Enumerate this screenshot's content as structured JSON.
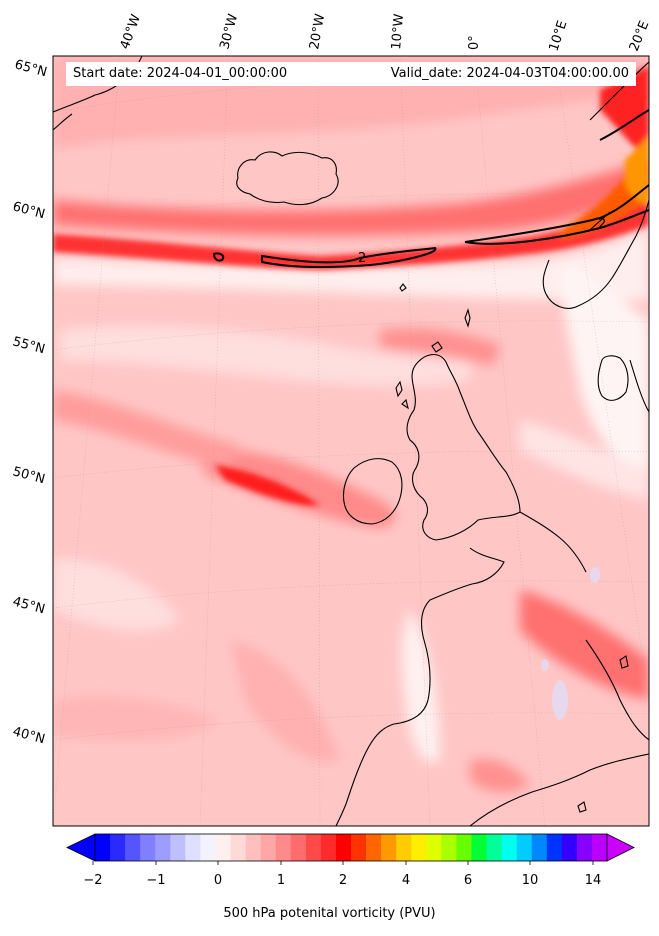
{
  "header": {
    "start_date": "Start date: 2024-04-01_00:00:00",
    "valid_date": "Valid_date: 2024-04-03T04:00:00.00"
  },
  "axes": {
    "lon_labels": [
      "40°W",
      "30°W",
      "20°W",
      "10°W",
      "0°",
      "10°E",
      "20°E"
    ],
    "lat_labels": [
      "65°N",
      "60°N",
      "55°N",
      "50°N",
      "45°N",
      "40°N"
    ]
  },
  "contour_label": "2",
  "colorbar": {
    "title": "500 hPa potenital vorticity (PVU)",
    "tick_labels": [
      "−2",
      "−1",
      "0",
      "1",
      "2",
      "4",
      "6",
      "10",
      "14"
    ],
    "colors": [
      "#0000ff",
      "#2a2aff",
      "#5555ff",
      "#7f7fff",
      "#9d9dff",
      "#bfbfff",
      "#dfdfff",
      "#f3f3ff",
      "#fff0f0",
      "#ffd8d8",
      "#ffbfbf",
      "#ffa6a6",
      "#ff8a8a",
      "#ff6c6c",
      "#ff4a4a",
      "#ff2a2a",
      "#ff0000",
      "#ff3300",
      "#ff6600",
      "#ff9900",
      "#ffcc00",
      "#ffee00",
      "#ddff00",
      "#aaff00",
      "#66ff00",
      "#00ff33",
      "#00ff99",
      "#00ffee",
      "#00ccff",
      "#0088ff",
      "#0033ff",
      "#3300ff",
      "#8800ff",
      "#bb00ff"
    ]
  }
}
